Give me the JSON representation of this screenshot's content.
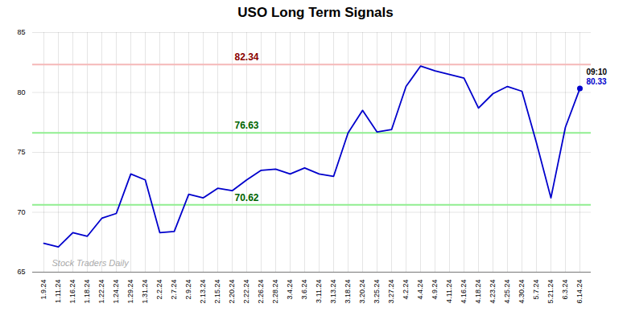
{
  "chart_data": {
    "type": "line",
    "title": "USO Long Term Signals",
    "categories": [
      "1.9.24",
      "1.11.24",
      "1.16.24",
      "1.18.24",
      "1.22.24",
      "1.24.24",
      "1.29.24",
      "1.31.24",
      "2.2.24",
      "2.7.24",
      "2.9.24",
      "2.13.24",
      "2.15.24",
      "2.20.24",
      "2.22.24",
      "2.26.24",
      "2.28.24",
      "3.4.24",
      "3.6.24",
      "3.11.24",
      "3.13.24",
      "3.18.24",
      "3.20.24",
      "3.25.24",
      "3.27.24",
      "4.2.24",
      "4.4.24",
      "4.9.24",
      "4.11.24",
      "4.16.24",
      "4.18.24",
      "4.23.24",
      "4.25.24",
      "4.30.24",
      "5.7.24",
      "5.21.24",
      "6.3.24",
      "6.14.24"
    ],
    "values": [
      67.4,
      67.1,
      68.3,
      68.0,
      69.5,
      69.9,
      73.2,
      72.7,
      68.3,
      68.4,
      71.5,
      71.2,
      72.0,
      71.8,
      72.7,
      73.5,
      73.6,
      73.2,
      73.7,
      73.2,
      73.0,
      76.63,
      78.5,
      76.7,
      76.9,
      80.5,
      82.2,
      81.8,
      81.5,
      81.2,
      78.7,
      79.9,
      80.5,
      80.1,
      75.8,
      71.2,
      77.1,
      80.33
    ],
    "color": "#0000cc",
    "ylim": [
      65,
      85
    ],
    "yticks": [
      65,
      70,
      75,
      80,
      85
    ],
    "grid": true,
    "reference_lines": [
      {
        "value": 82.34,
        "color": "#f5b8b8",
        "label": "82.34",
        "label_color": "#8b0000"
      },
      {
        "value": 76.63,
        "color": "#90ee90",
        "label": "76.63",
        "label_color": "#006400"
      },
      {
        "value": 70.62,
        "color": "#90ee90",
        "label": "70.62",
        "label_color": "#006400"
      }
    ],
    "last_point_labels": [
      {
        "text": "09:10",
        "color": "#000000"
      },
      {
        "text": "80.33",
        "color": "#0000cc"
      }
    ],
    "watermark": {
      "text": "Stock Traders Daily",
      "color": "#aaaaaa"
    }
  }
}
